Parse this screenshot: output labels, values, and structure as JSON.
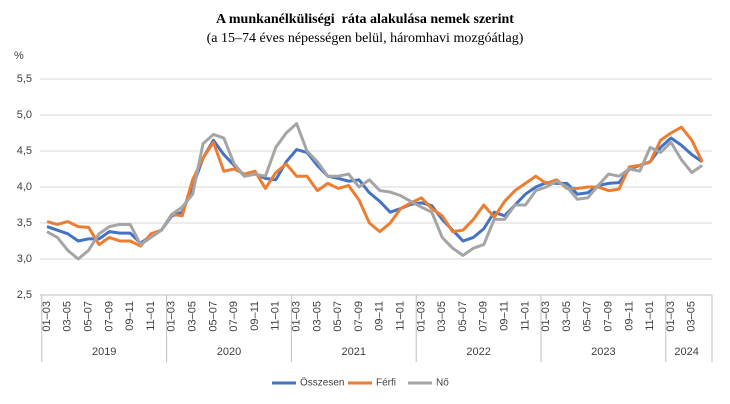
{
  "chart_data": {
    "type": "line",
    "title": "A munkanélküliségi  ráta alakulása nemek szerint",
    "subtitle": "(a 15–74 éves népességen belül, háromhavi mozgóátlag)",
    "y_label": "%",
    "categories": [
      "01–03",
      null,
      "03–05",
      null,
      "05–07",
      null,
      "07–09",
      null,
      "09–11",
      null,
      "11–01",
      null,
      "01–03",
      null,
      "03–05",
      null,
      "05–07",
      null,
      "07–09",
      null,
      "09–11",
      null,
      "11–01",
      null,
      "01–03",
      null,
      "03–05",
      null,
      "05–07",
      null,
      "07–09",
      null,
      "09–11",
      null,
      "11–01",
      null,
      "01–03",
      null,
      "03–05",
      null,
      "05–07",
      null,
      "07–09",
      null,
      "09–11",
      null,
      "11–01",
      null,
      "01–03",
      null,
      "03–05",
      null,
      "05–07",
      null,
      "07–09",
      null,
      "09–11",
      null,
      "11–01",
      null,
      "01–03",
      null,
      "03–05",
      null
    ],
    "year_groups": [
      "2019",
      "2020",
      "2021",
      "2022",
      "2023",
      "2024"
    ],
    "series": [
      {
        "name": "Összesen",
        "color": "#4472c4",
        "values": [
          3.45,
          3.4,
          3.35,
          3.25,
          3.28,
          3.28,
          3.38,
          3.36,
          3.36,
          3.22,
          3.32,
          3.4,
          3.6,
          3.65,
          4.0,
          4.4,
          4.65,
          4.45,
          4.3,
          4.15,
          4.18,
          4.12,
          4.1,
          4.35,
          4.52,
          4.48,
          4.3,
          4.15,
          4.12,
          4.08,
          4.1,
          3.92,
          3.8,
          3.65,
          3.7,
          3.76,
          3.78,
          3.74,
          3.55,
          3.4,
          3.25,
          3.3,
          3.42,
          3.65,
          3.6,
          3.75,
          3.9,
          4.0,
          4.06,
          4.05,
          4.05,
          3.9,
          3.92,
          4.02,
          4.05,
          4.06,
          4.25,
          4.3,
          4.35,
          4.55,
          4.68,
          4.58,
          4.45,
          4.35
        ]
      },
      {
        "name": "Férfi",
        "color": "#ed7d31",
        "values": [
          3.52,
          3.48,
          3.52,
          3.45,
          3.44,
          3.2,
          3.3,
          3.25,
          3.25,
          3.18,
          3.35,
          3.4,
          3.62,
          3.6,
          4.1,
          4.4,
          4.62,
          4.22,
          4.25,
          4.18,
          4.22,
          3.98,
          4.2,
          4.32,
          4.15,
          4.15,
          3.95,
          4.05,
          3.98,
          4.02,
          3.82,
          3.5,
          3.38,
          3.5,
          3.7,
          3.78,
          3.85,
          3.7,
          3.6,
          3.38,
          3.4,
          3.55,
          3.75,
          3.58,
          3.8,
          3.95,
          4.05,
          4.15,
          4.05,
          4.1,
          3.98,
          3.98,
          4.0,
          4.0,
          3.95,
          3.97,
          4.28,
          4.3,
          4.35,
          4.65,
          4.75,
          4.83,
          4.65,
          4.35
        ]
      },
      {
        "name": "Nő",
        "color": "#a5a5a5",
        "values": [
          3.38,
          3.3,
          3.12,
          3.0,
          3.12,
          3.35,
          3.45,
          3.48,
          3.48,
          3.2,
          3.3,
          3.4,
          3.62,
          3.72,
          3.9,
          4.6,
          4.73,
          4.68,
          4.32,
          4.15,
          4.18,
          4.15,
          4.55,
          4.75,
          4.88,
          4.5,
          4.35,
          4.15,
          4.15,
          4.18,
          4.0,
          4.1,
          3.95,
          3.93,
          3.88,
          3.8,
          3.72,
          3.65,
          3.3,
          3.15,
          3.05,
          3.15,
          3.2,
          3.55,
          3.55,
          3.75,
          3.75,
          3.95,
          4.0,
          4.08,
          4.0,
          3.83,
          3.85,
          4.02,
          4.18,
          4.15,
          4.25,
          4.22,
          4.55,
          4.48,
          4.62,
          4.38,
          4.2,
          4.3
        ]
      }
    ],
    "ylim": [
      2.5,
      5.5
    ],
    "yticks": [
      {
        "value": 2.5,
        "label": "2,5"
      },
      {
        "value": 3.0,
        "label": "3,0"
      },
      {
        "value": 3.5,
        "label": "3,5"
      },
      {
        "value": 4.0,
        "label": "4,0"
      },
      {
        "value": 4.5,
        "label": "4,5"
      },
      {
        "value": 5.0,
        "label": "5,0"
      },
      {
        "value": 5.5,
        "label": "5,5"
      }
    ],
    "grid": true,
    "legend": "bottom"
  }
}
